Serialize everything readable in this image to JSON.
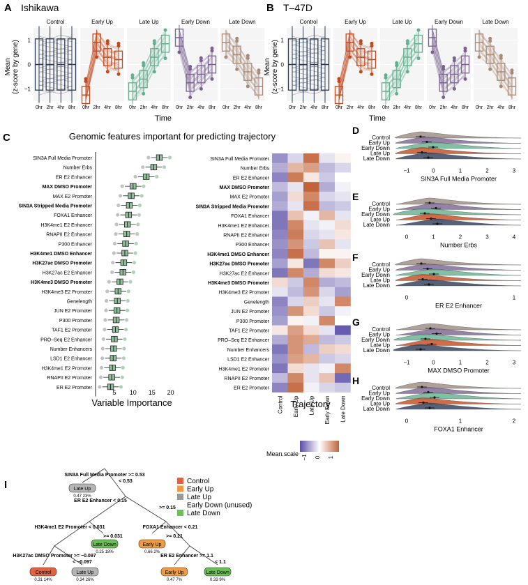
{
  "panelA": {
    "letter": "A",
    "title": "Ishikawa"
  },
  "panelB": {
    "letter": "B",
    "title": "T–47D"
  },
  "trajectory_labels": [
    "Control",
    "Early Up",
    "Late Up",
    "Early Down",
    "Late Down"
  ],
  "time_ticks": [
    "0hr",
    "2hr",
    "4hr",
    "8hr"
  ],
  "time_label": "Time",
  "y_label_1": "Mean",
  "y_label_2": "(z-score by gene)",
  "y_ticks": [
    "1",
    "0",
    "−1"
  ],
  "panelC": {
    "letter": "C",
    "title": "Genomic features important for predicting trajectory",
    "xlabel": "Variable Importance",
    "xticks": [
      "5",
      "10",
      "15",
      "20"
    ],
    "heatmap_xlabel": "Trajectory",
    "legend_title": "Mean.scale",
    "legend_ticks": [
      "−1",
      "0",
      "1"
    ]
  },
  "colors": {
    "Control": "#2b3a55",
    "Early Up": "#c2491d",
    "Late Up": "#62b08e",
    "Early Down": "#7b6391",
    "Late Down": "#a88a78",
    "neg": "#5a4ea6",
    "pos": "#c2643a",
    "mid": "#ffffff"
  },
  "chart_data": [
    {
      "type": "box",
      "title": "Variable Importance",
      "categories": [
        "SIN3A Full Media Promoter",
        "Number Erbs",
        "ER E2 Enhancer",
        "MAX DMSO Promoter",
        "MAX E2 Promoter",
        "SIN3A Stripped Media Promoter",
        "FOXA1 Enhancer",
        "H3K4me1 E2 Enhancer",
        "RNAPII E2 Enhancer",
        "P300 Enhancer",
        "H3K4me1 DMSO Enhancer",
        "H3K27ac DMSO Promoter",
        "H3K27ac E2 Enhancer",
        "H3K4me3 DMSO Promoter",
        "H3K4me3 E2 Promoter",
        "Genelength",
        "JUN E2 Promoter",
        "P300 Promoter",
        "TAF1 E2 Promoter",
        "PRO–Seq E2 Enhancer",
        "Number Enhancers",
        "LSD1 E2 Enhancer",
        "H3K4me1 E2 Promoter",
        "RNAPII E2 Promoter",
        "ER E2 Promoter"
      ],
      "bold": [
        3,
        5,
        10,
        11,
        13
      ],
      "medians": [
        17,
        15.5,
        13.5,
        10,
        9.5,
        9,
        8.8,
        8.5,
        8.3,
        8,
        7.8,
        7.5,
        7.3,
        6.5,
        6,
        5.8,
        5.7,
        5.5,
        5.3,
        5,
        4.8,
        4.7,
        4.5,
        4.3,
        4
      ],
      "xlim": [
        0,
        21
      ]
    },
    {
      "type": "heatmap",
      "rows": [
        "SIN3A Full Media Promoter",
        "Number Erbs",
        "ER E2 Enhancer",
        "MAX DMSO Promoter",
        "MAX E2 Promoter",
        "SIN3A Stripped Media Promoter",
        "FOXA1 Enhancer",
        "H3K4me1 E2 Enhancer",
        "RNAPII E2 Enhancer",
        "P300 Enhancer",
        "H3K4me1 DMSO Enhancer",
        "H3K27ac DMSO Promoter",
        "H3K27ac E2 Enhancer",
        "H3K4me3 DMSO Promoter",
        "H3K4me3 E2 Promoter",
        "Genelength",
        "JUN E2 Promoter",
        "P300 Promoter",
        "TAF1 E2 Promoter",
        "PRO–Seq E2 Enhancer",
        "Number Enhancers",
        "LSD1 E2 Enhancer",
        "H3K4me1 E2 Promoter",
        "RNAPII E2 Promoter",
        "ER E2 Promoter"
      ],
      "columns": [
        "Control",
        "Early Up",
        "Late Up",
        "Early Down",
        "Late Down"
      ],
      "values": [
        [
          -0.8,
          -0.3,
          1.2,
          -0.2,
          0.1
        ],
        [
          -0.6,
          0.6,
          0.8,
          -0.5,
          -0.3
        ],
        [
          -0.9,
          1.1,
          0.2,
          -0.4,
          0.0
        ],
        [
          -0.5,
          -0.2,
          1.3,
          -0.6,
          -0.1
        ],
        [
          -0.7,
          0.3,
          1.0,
          -0.3,
          -0.2
        ],
        [
          -0.6,
          -0.2,
          1.2,
          -0.5,
          -0.4
        ],
        [
          -1.0,
          0.5,
          -0.1,
          0.6,
          -0.2
        ],
        [
          -1.0,
          1.0,
          -0.2,
          -0.1,
          0.3
        ],
        [
          -0.9,
          1.1,
          -0.3,
          -0.2,
          0.2
        ],
        [
          -0.8,
          0.9,
          -0.4,
          0.5,
          -0.2
        ],
        [
          -0.9,
          1.2,
          -0.5,
          0.1,
          0.1
        ],
        [
          -0.7,
          0.2,
          -1.0,
          1.0,
          0.4
        ],
        [
          -1.0,
          1.0,
          -0.6,
          0.3,
          0.2
        ],
        [
          0.3,
          -0.4,
          1.0,
          -0.6,
          -0.5
        ],
        [
          -0.2,
          -0.5,
          0.9,
          -0.3,
          -0.7
        ],
        [
          -0.9,
          -0.3,
          0.4,
          -0.2,
          1.0
        ],
        [
          -0.8,
          0.9,
          0.3,
          -0.4,
          -0.1
        ],
        [
          -0.7,
          0.1,
          -0.1,
          1.0,
          0.0
        ],
        [
          0.2,
          0.8,
          0.3,
          -0.2,
          -1.2
        ],
        [
          -0.6,
          0.9,
          0.7,
          -0.5,
          -0.4
        ],
        [
          -1.0,
          0.9,
          -0.5,
          0.4,
          0.3
        ],
        [
          -0.8,
          0.8,
          0.6,
          -0.4,
          -0.3
        ],
        [
          -1.0,
          0.3,
          -0.2,
          -0.1,
          1.0
        ],
        [
          -0.5,
          1.0,
          -0.2,
          0.5,
          -1.1
        ],
        [
          -0.9,
          1.2,
          -0.1,
          -0.3,
          -0.4
        ]
      ]
    }
  ],
  "ridge_panels": [
    {
      "letter": "D",
      "xlabel": "SIN3A Full Media Promoter",
      "xticks": [
        "−1",
        "0",
        "1",
        "2",
        "3"
      ]
    },
    {
      "letter": "E",
      "xlabel": "Number Erbs",
      "xticks": [
        "0",
        "1",
        "2",
        "3",
        "4"
      ]
    },
    {
      "letter": "F",
      "xlabel": "ER E2 Enhancer",
      "xticks": [
        "0",
        "1"
      ]
    },
    {
      "letter": "G",
      "xlabel": "MAX DMSO Promoter",
      "xticks": [
        "−1",
        "0",
        "1",
        "2",
        "3"
      ]
    },
    {
      "letter": "H",
      "xlabel": "FOXA1 Enhancer",
      "xticks": [
        "0",
        "1",
        "2"
      ]
    }
  ],
  "ridge_labels": [
    "Control",
    "Early Up",
    "Early Down",
    "Late Up",
    "Late Down"
  ],
  "panelI": {
    "letter": "I",
    "legend": [
      {
        "label": "Control",
        "color": "#e4613f"
      },
      {
        "label": "Early Up",
        "color": "#f29a3f"
      },
      {
        "label": "Late Up",
        "color": "#999999"
      },
      {
        "label": "Early Down (unused)",
        "color": "#ffffff"
      },
      {
        "label": "Late Down",
        "color": "#6cbf57"
      }
    ],
    "splits": {
      "s1": "SIN3A Full Media Promoter >= 0.53",
      "s1n": "< 0.53",
      "s2": "ER E2 Enhancer < 0.15",
      "s2n": ">= 0.15",
      "s3": "H3K4me1 E2 Promoter < 0.031",
      "s3n": ">= 0.031",
      "s4": "FOXA1 Enhancer < 0.21",
      "s4n": ">= 0.21",
      "s5": "H3K27ac DMSO Promoter >= −0.097",
      "s5n": "< −0.097",
      "s6": "ER E2 Enhancer >= 1.1",
      "s6n": "< 1.1"
    },
    "leaves": [
      {
        "id": "l1",
        "label": "Late Up",
        "stats": "0.47  23%"
      },
      {
        "id": "l2",
        "label": "Late Down",
        "stats": "0.25  18%"
      },
      {
        "id": "l3",
        "label": "Early Up",
        "stats": "0.66  2%"
      },
      {
        "id": "l4",
        "label": "Control",
        "stats": "0.31  14%"
      },
      {
        "id": "l5",
        "label": "Late Up",
        "stats": "0.34  26%"
      },
      {
        "id": "l6",
        "label": "Early Up",
        "stats": "0.47  7%"
      },
      {
        "id": "l7",
        "label": "Late Down",
        "stats": "0.33  9%"
      }
    ]
  }
}
